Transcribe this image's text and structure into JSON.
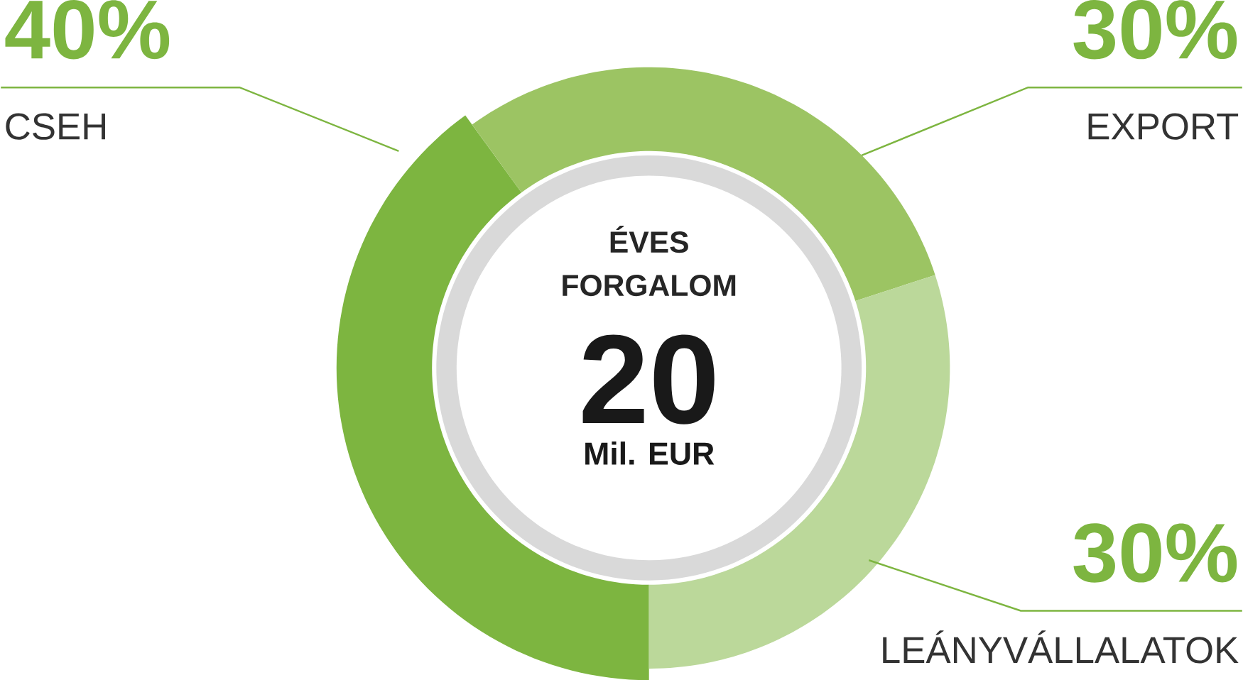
{
  "chart_data": {
    "type": "donut",
    "title": "ÉVES FORGALOM",
    "categories": [
      "CSEH",
      "EXPORT",
      "LEÁNYVÁLLALATOK"
    ],
    "values": [
      40,
      30,
      30
    ],
    "value_labels": [
      "40%",
      "30%",
      "30%"
    ],
    "colors": [
      "#7db540",
      "#9cc463",
      "#bbd89a"
    ],
    "annotations": [
      "20",
      "Mil. EUR"
    ]
  }
}
